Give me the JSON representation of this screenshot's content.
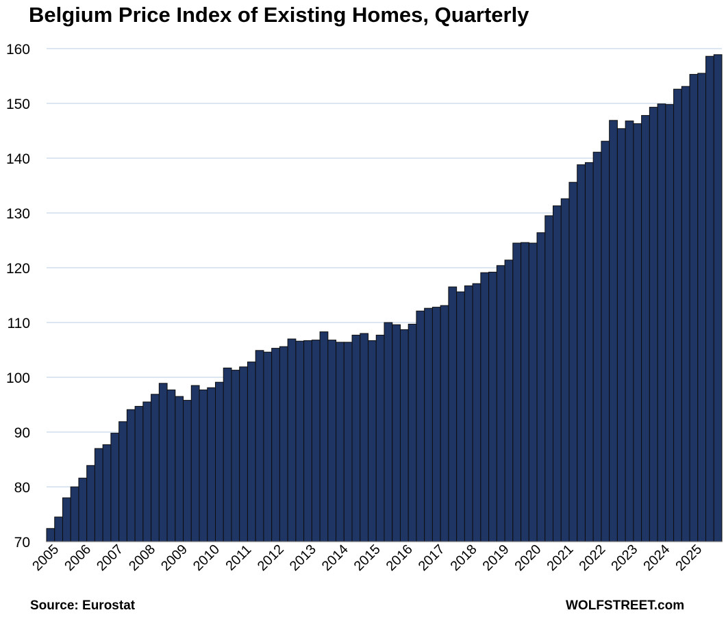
{
  "chart_data": {
    "type": "bar",
    "title": "Belgium Price Index of Existing Homes, Quarterly",
    "xlabel": "",
    "ylabel": "",
    "ylim": [
      70,
      160
    ],
    "yticks": [
      70,
      80,
      90,
      100,
      110,
      120,
      130,
      140,
      150,
      160
    ],
    "year_labels": [
      "2005",
      "2006",
      "2007",
      "2008",
      "2009",
      "2010",
      "2011",
      "2012",
      "2013",
      "2014",
      "2015",
      "2016",
      "2017",
      "2018",
      "2019",
      "2020",
      "2021",
      "2022",
      "2023",
      "2024",
      "2025"
    ],
    "grid": true,
    "legend": "none",
    "colors": {
      "bar": "#1f3564",
      "bar_edge": "#0d0d0d",
      "grid": "#b8cde0",
      "axis": "#7f7f7f"
    },
    "categories": [
      "2005 Q1",
      "2005 Q2",
      "2005 Q3",
      "2005 Q4",
      "2006 Q1",
      "2006 Q2",
      "2006 Q3",
      "2006 Q4",
      "2007 Q1",
      "2007 Q2",
      "2007 Q3",
      "2007 Q4",
      "2008 Q1",
      "2008 Q2",
      "2008 Q3",
      "2008 Q4",
      "2009 Q1",
      "2009 Q2",
      "2009 Q3",
      "2009 Q4",
      "2010 Q1",
      "2010 Q2",
      "2010 Q3",
      "2010 Q4",
      "2011 Q1",
      "2011 Q2",
      "2011 Q3",
      "2011 Q4",
      "2012 Q1",
      "2012 Q2",
      "2012 Q3",
      "2012 Q4",
      "2013 Q1",
      "2013 Q2",
      "2013 Q3",
      "2013 Q4",
      "2014 Q1",
      "2014 Q2",
      "2014 Q3",
      "2014 Q4",
      "2015 Q1",
      "2015 Q2",
      "2015 Q3",
      "2015 Q4",
      "2016 Q1",
      "2016 Q2",
      "2016 Q3",
      "2016 Q4",
      "2017 Q1",
      "2017 Q2",
      "2017 Q3",
      "2017 Q4",
      "2018 Q1",
      "2018 Q2",
      "2018 Q3",
      "2018 Q4",
      "2019 Q1",
      "2019 Q2",
      "2019 Q3",
      "2019 Q4",
      "2020 Q1",
      "2020 Q2",
      "2020 Q3",
      "2020 Q4",
      "2021 Q1",
      "2021 Q2",
      "2021 Q3",
      "2021 Q4",
      "2022 Q1",
      "2022 Q2",
      "2022 Q3",
      "2022 Q4",
      "2023 Q1",
      "2023 Q2",
      "2023 Q3",
      "2023 Q4",
      "2024 Q1",
      "2024 Q2",
      "2024 Q3",
      "2024 Q4",
      "2025 Q1",
      "2025 Q2",
      "2025 Q3",
      "2025 Q4"
    ],
    "values": [
      72.4,
      74.5,
      78.0,
      80.0,
      81.6,
      83.9,
      87.0,
      87.7,
      89.8,
      91.9,
      94.1,
      94.7,
      95.5,
      96.9,
      98.9,
      97.7,
      96.5,
      95.8,
      98.5,
      97.7,
      98.1,
      99.1,
      101.7,
      101.3,
      101.9,
      102.8,
      104.9,
      104.6,
      105.3,
      105.6,
      107.0,
      106.6,
      106.7,
      106.8,
      108.3,
      106.8,
      106.4,
      106.4,
      107.7,
      108.0,
      106.7,
      107.7,
      110.0,
      109.6,
      108.7,
      109.7,
      112.1,
      112.6,
      112.8,
      113.1,
      116.5,
      115.6,
      116.7,
      117.1,
      119.1,
      119.2,
      120.4,
      121.4,
      124.5,
      124.6,
      124.5,
      126.4,
      129.5,
      131.3,
      132.6,
      135.6,
      138.8,
      139.2,
      141.1,
      143.1,
      146.9,
      145.4,
      146.8,
      146.3,
      147.8,
      149.3,
      149.9,
      149.8,
      152.6,
      153.1,
      155.3,
      155.5,
      158.6,
      158.9
    ]
  },
  "footer": {
    "source": "Source: Eurostat",
    "brand": "WOLFSTREET.com"
  }
}
